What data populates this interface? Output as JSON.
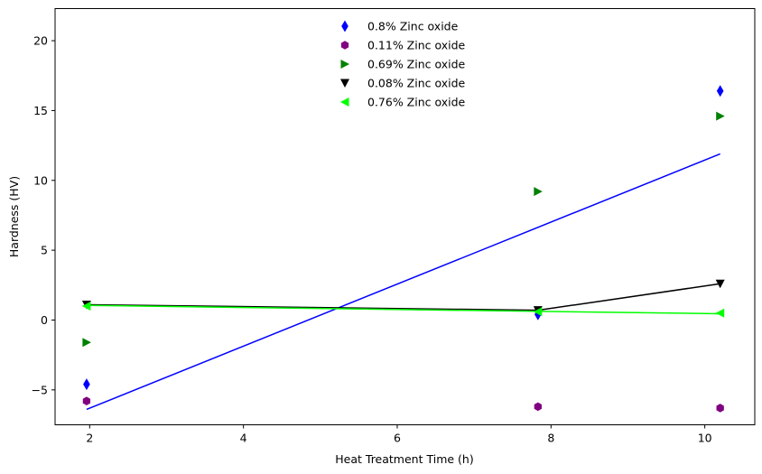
{
  "chart_data": {
    "type": "scatter",
    "xlabel": "Heat Treatment Time (h)",
    "ylabel": "Hardness (HV)",
    "xlim": [
      1.55,
      10.65
    ],
    "ylim": [
      -7.5,
      22.3
    ],
    "xticks": [
      2,
      4,
      6,
      8,
      10
    ],
    "yticks": [
      -5,
      0,
      5,
      10,
      15,
      20
    ],
    "x": [
      1.96,
      7.83,
      10.2
    ],
    "legend_position": "upper-center",
    "grid": false,
    "series": [
      {
        "name": "0.8% Zinc oxide",
        "color": "#0000ff",
        "marker": "thin-diamond",
        "values": [
          -4.6,
          0.4,
          16.4
        ],
        "line": {
          "type": "linear-fit",
          "x": [
            1.96,
            10.2
          ],
          "y": [
            -6.4,
            11.9
          ]
        }
      },
      {
        "name": "0.11% Zinc oxide",
        "color": "#800080",
        "marker": "hexagon",
        "values": [
          -5.8,
          -6.2,
          -6.3
        ]
      },
      {
        "name": "0.69% Zinc oxide",
        "color": "#008000",
        "marker": "triangle-right",
        "values": [
          -1.6,
          9.2,
          14.6
        ]
      },
      {
        "name": "0.08% Zinc oxide",
        "color": "#000000",
        "marker": "triangle-down",
        "values": [
          1.1,
          0.7,
          2.6
        ],
        "line": {
          "type": "connect",
          "x": [
            1.96,
            7.83,
            10.2
          ],
          "y": [
            1.1,
            0.7,
            2.6
          ]
        }
      },
      {
        "name": "0.76% Zinc oxide",
        "color": "#00ff00",
        "marker": "triangle-left",
        "values": [
          1.0,
          0.6,
          0.5
        ],
        "line": {
          "type": "linear-fit",
          "x": [
            1.96,
            10.2
          ],
          "y": [
            1.05,
            0.45
          ]
        }
      }
    ]
  }
}
